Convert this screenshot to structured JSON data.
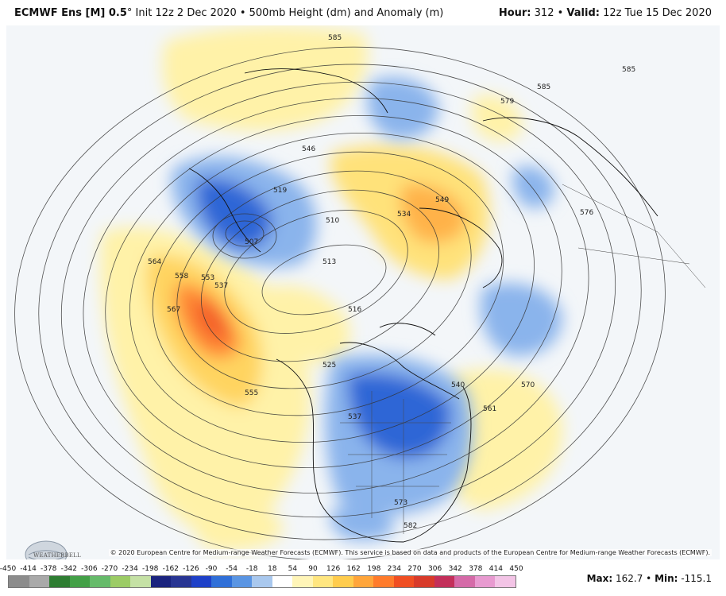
{
  "header": {
    "model": "ECMWF Ens [M] 0.5",
    "degree": "°",
    "init": " Init 12z 2 Dec 2020 • 500mb Height (dm) and Anomaly (m)",
    "hour_label": "Hour:",
    "hour_value": "312",
    "valid_label": "Valid:",
    "valid_value": "12z Tue 15 Dec 2020",
    "separator": " • "
  },
  "credit": "© 2020 European Centre for Medium-range Weather Forecasts (ECMWF). This service is based on data and products of the European Centre for Medium-range Weather Forecasts (ECMWF).",
  "logo_text": "WEATHERBELL",
  "contour_labels": [
    {
      "text": "585",
      "id": "c585a"
    },
    {
      "text": "585",
      "id": "c585b"
    },
    {
      "text": "585",
      "id": "c585c"
    },
    {
      "text": "579",
      "id": "c579"
    },
    {
      "text": "546",
      "id": "c546"
    },
    {
      "text": "519",
      "id": "c519"
    },
    {
      "text": "510",
      "id": "c510"
    },
    {
      "text": "507",
      "id": "c507"
    },
    {
      "text": "513",
      "id": "c513"
    },
    {
      "text": "516",
      "id": "c516"
    },
    {
      "text": "549",
      "id": "c549"
    },
    {
      "text": "534",
      "id": "c534"
    },
    {
      "text": "576",
      "id": "c576"
    },
    {
      "text": "564",
      "id": "c564"
    },
    {
      "text": "558",
      "id": "c558"
    },
    {
      "text": "553",
      "id": "c553"
    },
    {
      "text": "537",
      "id": "c537a"
    },
    {
      "text": "567",
      "id": "c567"
    },
    {
      "text": "555",
      "id": "c555"
    },
    {
      "text": "525",
      "id": "c525"
    },
    {
      "text": "537",
      "id": "c537b"
    },
    {
      "text": "540",
      "id": "c540"
    },
    {
      "text": "570",
      "id": "c570"
    },
    {
      "text": "561",
      "id": "c561"
    },
    {
      "text": "573",
      "id": "c573"
    },
    {
      "text": "582",
      "id": "c582"
    }
  ],
  "colorbar": {
    "ticks": [
      "-450",
      "-414",
      "-378",
      "-342",
      "-306",
      "-270",
      "-234",
      "-198",
      "-162",
      "-126",
      "-90",
      "-54",
      "-18",
      "18",
      "54",
      "90",
      "126",
      "162",
      "198",
      "234",
      "270",
      "306",
      "342",
      "378",
      "414",
      "450"
    ],
    "colors": [
      "#8c8c8c",
      "#a9a9a9",
      "#2e7d32",
      "#43a047",
      "#66bb6a",
      "#9ccc65",
      "#c5e1a5",
      "#1a237e",
      "#283593",
      "#1e40c8",
      "#2f6fd8",
      "#5a95e3",
      "#a9c8ee",
      "#ffffff",
      "#fff5b8",
      "#ffe680",
      "#ffcc4d",
      "#ffa53a",
      "#ff7b2b",
      "#f04e22",
      "#d83a2a",
      "#c32f5a",
      "#d56aa8",
      "#e89ad0",
      "#f3c4e6"
    ]
  },
  "stats": {
    "max_label": "Max:",
    "max_value": "162.7",
    "sep": " • ",
    "min_label": "Min:",
    "min_value": "-115.1"
  }
}
